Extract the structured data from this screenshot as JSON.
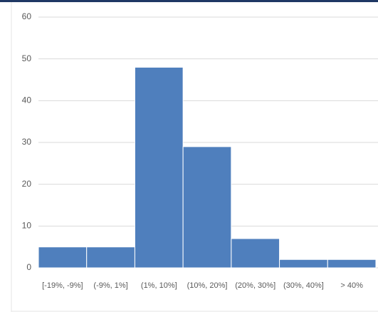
{
  "chart_data": {
    "type": "bar",
    "categories": [
      "[-19%, -9%]",
      "(-9%, 1%]",
      "(1%, 10%]",
      "(10%, 20%]",
      "(20%, 30%]",
      "(30%, 40%]",
      "> 40%"
    ],
    "values": [
      5,
      5,
      48,
      29,
      7,
      2,
      2
    ],
    "color": "#4f7fbd",
    "ylim": [
      0,
      60
    ],
    "yticks": [
      0,
      10,
      20,
      30,
      40,
      50,
      60
    ],
    "grid": true
  }
}
